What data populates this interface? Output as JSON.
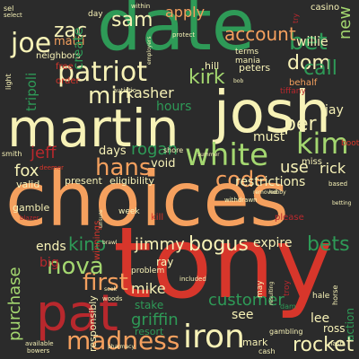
{
  "palette": {
    "background": "#2b2b2b",
    "green": "#2e9a57",
    "red": "#d7362b",
    "orange": "#f5a05e",
    "cream": "#f7f2b7",
    "lightgreen": "#a4d770",
    "darkred": "#b8282d"
  },
  "words": [
    {
      "text": "choices",
      "color": "#f5a05e"
    },
    {
      "text": "tony",
      "color": "#d7362b"
    },
    {
      "text": "date",
      "color": "#2e9a57"
    },
    {
      "text": "martin",
      "color": "#f7f2b7"
    },
    {
      "text": "josh",
      "color": "#f7f2b7"
    },
    {
      "text": "pat",
      "color": "#b8282d"
    },
    {
      "text": "white",
      "color": "#a4d770"
    },
    {
      "text": "patriot",
      "color": "#f7f2b7"
    },
    {
      "text": "hans",
      "color": "#f5a05e"
    },
    {
      "text": "kim",
      "color": "#a4d770"
    },
    {
      "text": "iron",
      "color": "#f7f2b7"
    },
    {
      "text": "madness",
      "color": "#f5a05e"
    },
    {
      "text": "first",
      "color": "#f5a05e"
    },
    {
      "text": "nova",
      "color": "#a4d770"
    },
    {
      "text": "code",
      "color": "#f5a05e"
    },
    {
      "text": "joe",
      "color": "#f7f2b7"
    },
    {
      "text": "bets",
      "color": "#2e9a57"
    },
    {
      "text": "bet",
      "color": "#2e9a57"
    },
    {
      "text": "kirk",
      "color": "#a4d770"
    },
    {
      "text": "min",
      "color": "#f7f2b7"
    },
    {
      "text": "dom",
      "color": "#f7f2b7"
    },
    {
      "text": "call",
      "color": "#2e9a57"
    },
    {
      "text": "per",
      "color": "#f7f2b7"
    },
    {
      "text": "rocket",
      "color": "#f7f2b7"
    },
    {
      "text": "bogus",
      "color": "#f7f2b7"
    },
    {
      "text": "kino",
      "color": "#2e9a57"
    },
    {
      "text": "jimmy",
      "color": "#f7f2b7"
    },
    {
      "text": "zac",
      "color": "#f7f2b7"
    },
    {
      "text": "sam",
      "color": "#f7f2b7"
    },
    {
      "text": "account",
      "color": "#f5a05e"
    },
    {
      "text": "customer",
      "color": "#2e9a57"
    },
    {
      "text": "mike",
      "color": "#f7f2b7"
    },
    {
      "text": "kasher",
      "color": "#f7f2b7"
    },
    {
      "text": "rogan",
      "color": "#2e9a57"
    },
    {
      "text": "jeff",
      "color": "#b8282d"
    },
    {
      "text": "fox",
      "color": "#f7f2b7"
    },
    {
      "text": "griffin",
      "color": "#2e9a57"
    },
    {
      "text": "new",
      "color": "#a4d770"
    },
    {
      "text": "restrictions",
      "color": "#f7f2b7"
    },
    {
      "text": "use",
      "color": "#f7f2b7"
    },
    {
      "text": "rick",
      "color": "#f7f2b7"
    },
    {
      "text": "purchase",
      "color": "#a4d770"
    },
    {
      "text": "apply",
      "color": "#f5a05e"
    },
    {
      "text": "willie",
      "color": "#f7f2b7"
    },
    {
      "text": "must",
      "color": "#f7f2b7"
    },
    {
      "text": "expire",
      "color": "#f7f2b7"
    },
    {
      "text": "hours",
      "color": "#2e9a57"
    },
    {
      "text": "create",
      "color": "#2e9a57"
    },
    {
      "text": "tripoli",
      "color": "#2e9a57"
    },
    {
      "text": "ends",
      "color": "#f7f2b7"
    },
    {
      "text": "big",
      "color": "#b8282d"
    },
    {
      "text": "void",
      "color": "#f7f2b7"
    },
    {
      "text": "days",
      "color": "#f7f2b7"
    },
    {
      "text": "present",
      "color": "#f7f2b7"
    },
    {
      "text": "eligibility",
      "color": "#f7f2b7"
    },
    {
      "text": "valid",
      "color": "#f7f2b7"
    },
    {
      "text": "gamble",
      "color": "#f7f2b7"
    },
    {
      "text": "see",
      "color": "#f7f2b7"
    },
    {
      "text": "lee",
      "color": "#f7f2b7"
    },
    {
      "text": "ross",
      "color": "#f7f2b7"
    },
    {
      "text": "jay",
      "color": "#f7f2b7"
    },
    {
      "text": "peters",
      "color": "#f7f2b7"
    },
    {
      "text": "hill",
      "color": "#f7f2b7"
    },
    {
      "text": "matti",
      "color": "#f5a05e"
    },
    {
      "text": "neighbors",
      "color": "#f7f2b7"
    },
    {
      "text": "free",
      "color": "#d7362b"
    },
    {
      "text": "order",
      "color": "#d7362b"
    },
    {
      "text": "mark",
      "color": "#f7f2b7"
    },
    {
      "text": "responsibly",
      "color": "#f7f2b7"
    },
    {
      "text": "stake",
      "color": "#2e9a57"
    },
    {
      "text": "resort",
      "color": "#2e9a57"
    },
    {
      "text": "ray",
      "color": "#f7f2b7"
    },
    {
      "text": "problem",
      "color": "#f7f2b7"
    },
    {
      "text": "week",
      "color": "#f7f2b7"
    },
    {
      "text": "kill",
      "color": "#d7362b"
    },
    {
      "text": "boot",
      "color": "#d7362b"
    },
    {
      "text": "winnings",
      "color": "#2e9a57"
    },
    {
      "text": "miss",
      "color": "#f7f2b7"
    },
    {
      "text": "action",
      "color": "#d7362b"
    },
    {
      "text": "behalf",
      "color": "#f5a05e"
    },
    {
      "text": "casino",
      "color": "#f7f2b7"
    },
    {
      "text": "terms",
      "color": "#f7f2b7"
    },
    {
      "text": "mania",
      "color": "#f7f2b7"
    },
    {
      "text": "protect",
      "color": "#f7f2b7"
    },
    {
      "text": "smith",
      "color": "#f7f2b7"
    },
    {
      "text": "light",
      "color": "#f7f2b7"
    },
    {
      "text": "sel",
      "color": "#f7f2b7"
    },
    {
      "text": "cash",
      "color": "#f7f2b7"
    },
    {
      "text": "horse",
      "color": "#f7f2b7"
    },
    {
      "text": "hale",
      "color": "#f7f2b7"
    },
    {
      "text": "troy",
      "color": "#b8282d"
    },
    {
      "text": "may",
      "color": "#f7f2b7"
    },
    {
      "text": "day",
      "color": "#f7f2b7"
    },
    {
      "text": "shore",
      "color": "#f7f2b7"
    },
    {
      "text": "tiffany",
      "color": "#b8282d"
    },
    {
      "text": "please",
      "color": "#b8282d"
    },
    {
      "text": "within",
      "color": "#f7f2b7"
    },
    {
      "text": "included",
      "color": "#f7f2b7"
    },
    {
      "text": "dam",
      "color": "#2e9a57"
    },
    {
      "text": "gambling",
      "color": "#f7f2b7"
    },
    {
      "text": "bowers",
      "color": "#f7f2b7"
    },
    {
      "text": "available",
      "color": "#f7f2b7"
    },
    {
      "text": "woods",
      "color": "#f7f2b7"
    },
    {
      "text": "removed",
      "color": "#f7f2b7"
    },
    {
      "text": "withdrawn",
      "color": "#f7f2b7"
    },
    {
      "text": "hobby",
      "color": "#f7f2b7"
    },
    {
      "text": "based",
      "color": "#f7f2b7"
    },
    {
      "text": "betting",
      "color": "#f7f2b7"
    },
    {
      "text": "blazer",
      "color": "#b8282d"
    },
    {
      "text": "deemer",
      "color": "#d7362b"
    },
    {
      "text": "autistic",
      "color": "#f7f2b7"
    },
    {
      "text": "employers",
      "color": "#f7f2b7"
    },
    {
      "text": "summer",
      "color": "#f7f2b7"
    },
    {
      "text": "nash",
      "color": "#f7f2b7"
    },
    {
      "text": "try",
      "color": "#b8282d"
    },
    {
      "text": "bob",
      "color": "#f7f2b7"
    },
    {
      "text": "brawl",
      "color": "#f7f2b7"
    },
    {
      "text": "seek",
      "color": "#f7f2b7"
    },
    {
      "text": "unsure",
      "color": "#f7f2b7"
    },
    {
      "text": "pharmacy",
      "color": "#f7f2b7"
    },
    {
      "text": "resulting",
      "color": "#f7f2b7"
    },
    {
      "text": "select",
      "color": "#f7f2b7"
    }
  ]
}
